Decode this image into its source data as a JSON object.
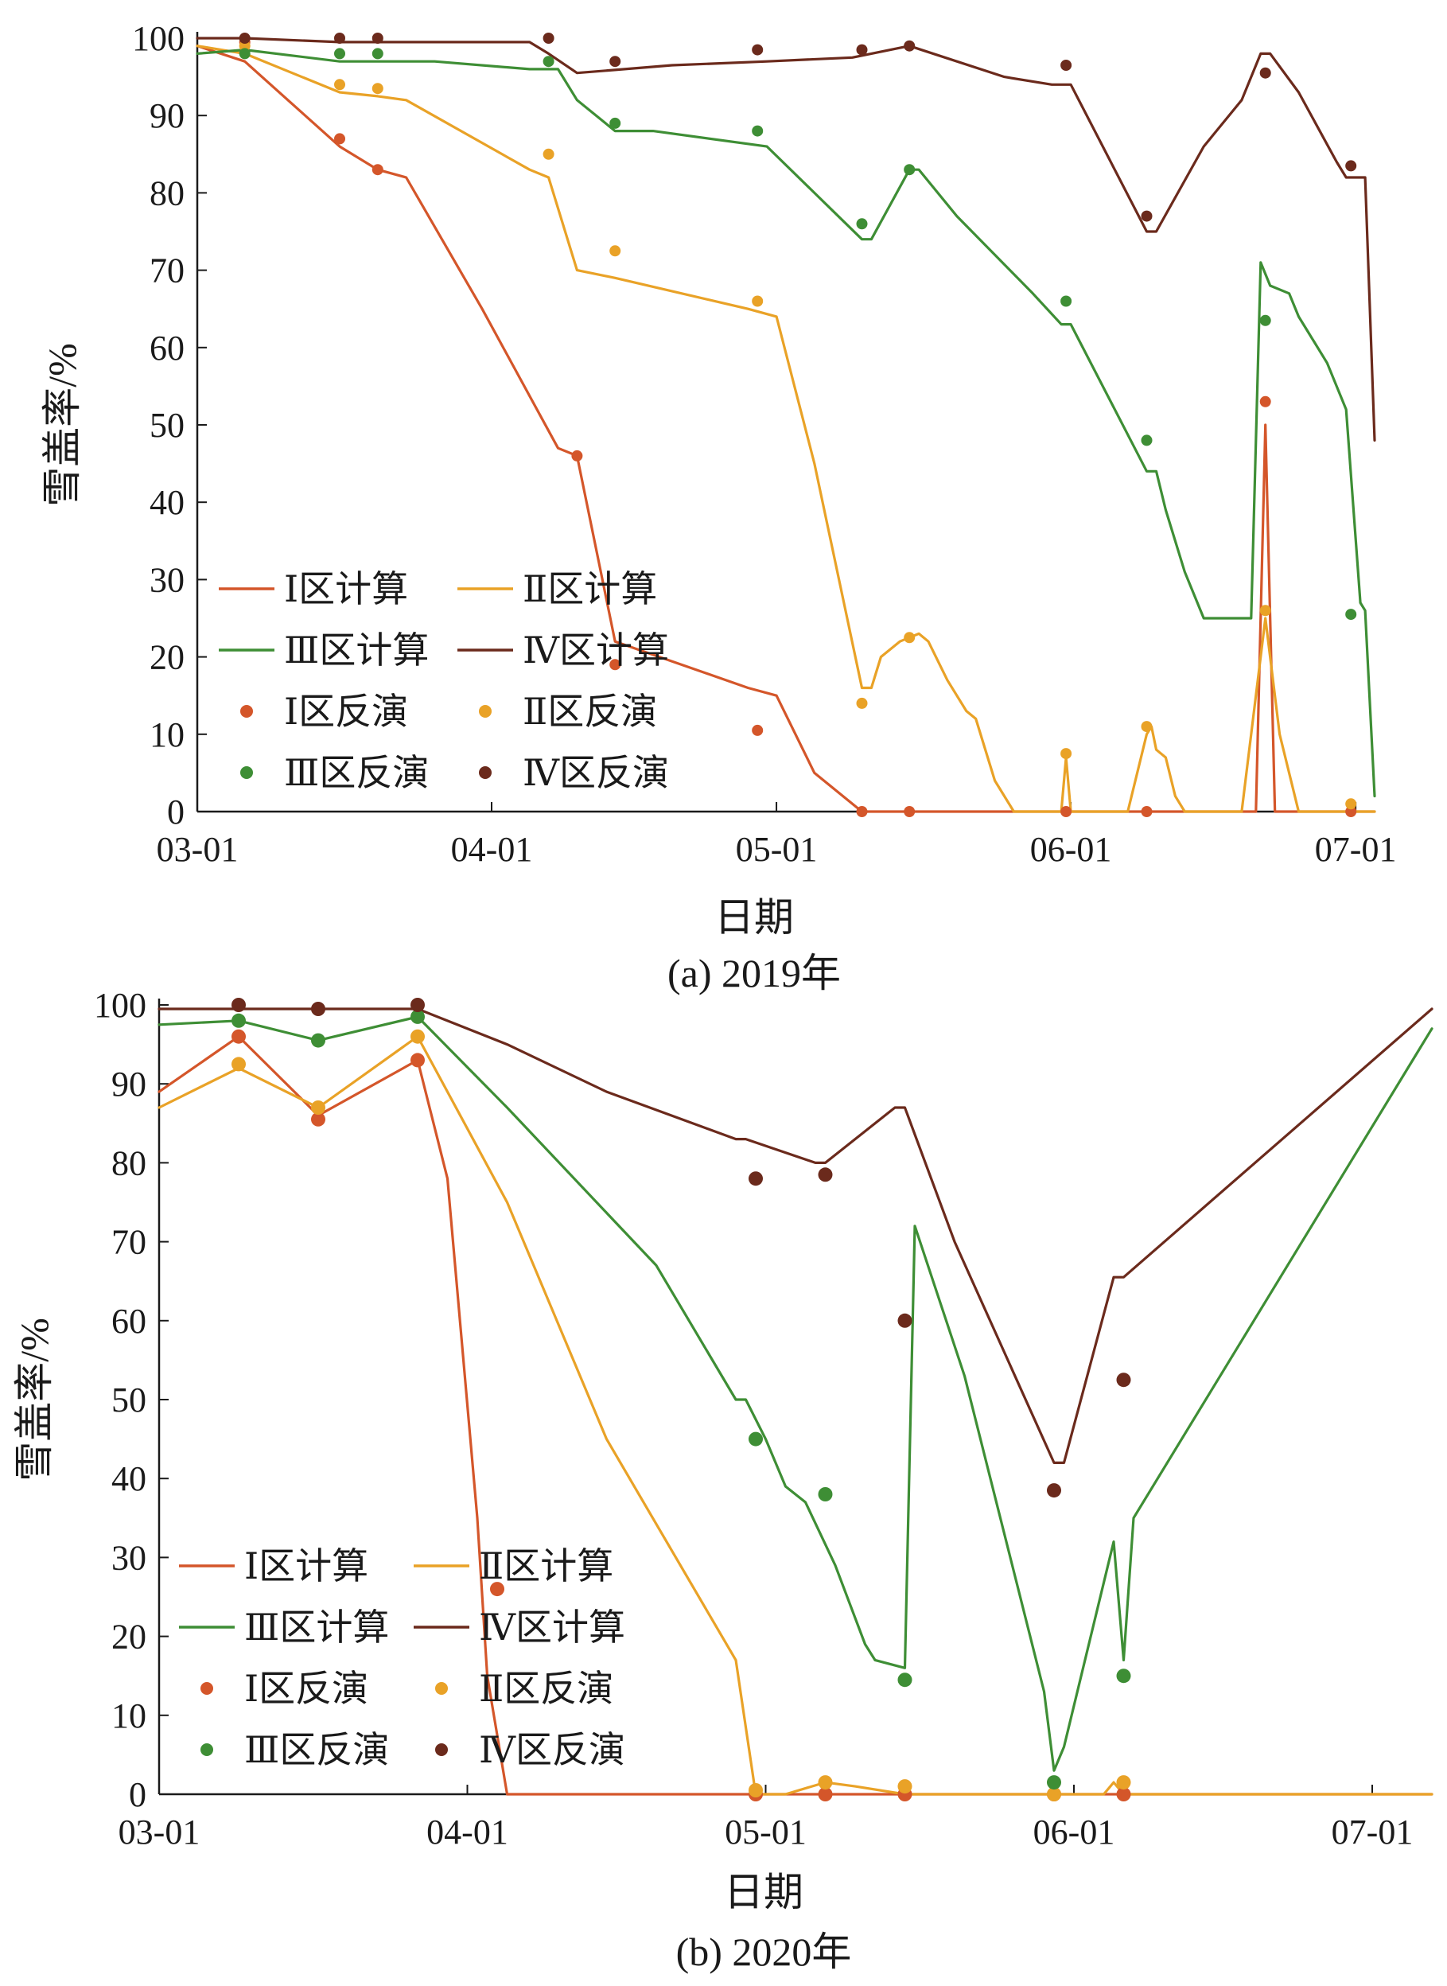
{
  "colors": {
    "zone1": "#d4562a",
    "zone2": "#e9a227",
    "zone3": "#3e8e35",
    "zone4": "#6b2a1c",
    "axis": "#1a1a1a"
  },
  "chart_data": [
    {
      "type": "line",
      "caption": "(a) 2019年",
      "xlabel": "日期",
      "ylabel": "雪盖率/%",
      "xlim": [
        0,
        124
      ],
      "ylim": [
        0,
        100
      ],
      "xticks": [
        {
          "label": "03-01",
          "day": 0
        },
        {
          "label": "04-01",
          "day": 31
        },
        {
          "label": "05-01",
          "day": 61
        },
        {
          "label": "06-01",
          "day": 92
        },
        {
          "label": "07-01",
          "day": 122
        }
      ],
      "yticks": [
        0,
        10,
        20,
        30,
        40,
        50,
        60,
        70,
        80,
        90,
        100
      ],
      "legend": [
        "Ⅰ区计算",
        "Ⅱ区计算",
        "Ⅲ区计算",
        "Ⅳ区计算",
        "Ⅰ区反演",
        "Ⅱ区反演",
        "Ⅲ区反演",
        "Ⅳ区反演"
      ],
      "series": [
        {
          "name": "Ⅰ区计算",
          "kind": "line",
          "color_key": "zone1",
          "x": [
            0,
            5,
            15,
            19,
            22,
            30,
            38,
            40,
            44,
            58,
            61,
            65,
            70,
            85,
            98,
            105,
            110,
            111.5,
            112.5,
            113.5,
            124
          ],
          "y": [
            99,
            97,
            86,
            83,
            82,
            65,
            47,
            46,
            22,
            16,
            15,
            5,
            0,
            0,
            0,
            0,
            0,
            0,
            50,
            0,
            0
          ]
        },
        {
          "name": "Ⅱ区计算",
          "kind": "line",
          "color_key": "zone2",
          "x": [
            0,
            5,
            15,
            19,
            22,
            35,
            37,
            40,
            44,
            58,
            61,
            65,
            70,
            71,
            72,
            74,
            76,
            77,
            79,
            81,
            82,
            84,
            86,
            90,
            91,
            91.5,
            92,
            96,
            98,
            100,
            100.5,
            101,
            102,
            103,
            104,
            110,
            112.5,
            114,
            116,
            124
          ],
          "y": [
            99,
            98,
            93,
            92.5,
            92,
            83,
            82,
            70,
            69,
            65,
            64,
            45,
            16,
            16,
            20,
            22,
            23,
            22,
            17,
            13,
            12,
            4,
            0,
            0,
            0,
            7,
            0,
            0,
            0,
            10,
            11,
            8,
            7,
            2,
            0,
            0,
            25,
            10,
            0,
            0
          ]
        },
        {
          "name": "Ⅲ区计算",
          "kind": "line",
          "color_key": "zone3",
          "x": [
            0,
            5,
            15,
            20,
            25,
            35,
            38,
            40,
            44,
            48,
            60,
            65,
            70,
            71,
            75,
            76,
            80,
            88,
            91,
            92,
            100,
            101,
            102,
            104,
            106,
            108,
            111,
            112,
            113,
            115,
            116,
            117,
            119,
            121,
            122.5,
            123,
            124
          ],
          "y": [
            98,
            98.5,
            97,
            97,
            97,
            96,
            96,
            92,
            88,
            88,
            86,
            80,
            74,
            74,
            83,
            83,
            77,
            67,
            63,
            63,
            44,
            44,
            39,
            31,
            25,
            25,
            25,
            71,
            68,
            67,
            64,
            62,
            58,
            52,
            27,
            26,
            2
          ]
        },
        {
          "name": "Ⅳ区计算",
          "kind": "line",
          "color_key": "zone4",
          "x": [
            0,
            5,
            15,
            20,
            35,
            37,
            40,
            45,
            50,
            60,
            69,
            75,
            85,
            90,
            92,
            100,
            101,
            106,
            110,
            112,
            113,
            116,
            120,
            121,
            123,
            124
          ],
          "y": [
            100,
            100,
            99.5,
            99.5,
            99.5,
            98,
            95.5,
            96,
            96.5,
            97,
            97.5,
            99,
            95,
            94,
            94,
            75,
            75,
            86,
            92,
            98,
            98,
            93,
            84,
            82,
            82,
            48
          ]
        },
        {
          "name": "Ⅰ区反演",
          "kind": "scatter",
          "color_key": "zone1",
          "x": [
            5,
            15,
            19,
            40,
            44,
            59,
            70,
            75,
            91.5,
            100,
            112.5,
            121.5
          ],
          "y": [
            99.5,
            87,
            83,
            46,
            19,
            10.5,
            0,
            0,
            0,
            0,
            53,
            0
          ]
        },
        {
          "name": "Ⅱ区反演",
          "kind": "scatter",
          "color_key": "zone2",
          "x": [
            5,
            15,
            19,
            37,
            44,
            59,
            70,
            75,
            91.5,
            100,
            112.5,
            121.5
          ],
          "y": [
            99,
            94,
            93.5,
            85,
            72.5,
            66,
            14,
            22.5,
            7.5,
            11,
            26,
            1
          ]
        },
        {
          "name": "Ⅲ区反演",
          "kind": "scatter",
          "color_key": "zone3",
          "x": [
            5,
            15,
            19,
            37,
            44,
            59,
            70,
            75,
            91.5,
            100,
            112.5,
            121.5
          ],
          "y": [
            98,
            98,
            98,
            97,
            89,
            88,
            76,
            83,
            66,
            48,
            63.5,
            25.5
          ]
        },
        {
          "name": "Ⅳ区反演",
          "kind": "scatter",
          "color_key": "zone4",
          "x": [
            5,
            15,
            19,
            37,
            44,
            59,
            70,
            75,
            91.5,
            100,
            112.5,
            121.5
          ],
          "y": [
            100,
            100,
            100,
            100,
            97,
            98.5,
            98.5,
            99,
            96.5,
            77,
            95.5,
            83.5
          ]
        }
      ]
    },
    {
      "type": "line",
      "caption": "(b) 2020年",
      "xlabel": "日期",
      "ylabel": "雪盖率/%",
      "xlim": [
        0,
        128
      ],
      "ylim": [
        0,
        100
      ],
      "xticks": [
        {
          "label": "03-01",
          "day": 0
        },
        {
          "label": "04-01",
          "day": 31
        },
        {
          "label": "05-01",
          "day": 61
        },
        {
          "label": "06-01",
          "day": 92
        },
        {
          "label": "07-01",
          "day": 122
        }
      ],
      "yticks": [
        0,
        10,
        20,
        30,
        40,
        50,
        60,
        70,
        80,
        90,
        100
      ],
      "legend": [
        "Ⅰ区计算",
        "Ⅱ区计算",
        "Ⅲ区计算",
        "Ⅳ区计算",
        "Ⅰ区反演",
        "Ⅱ区反演",
        "Ⅲ区反演",
        "Ⅳ区反演"
      ],
      "series": [
        {
          "name": "Ⅰ区计算",
          "kind": "line",
          "color_key": "zone1",
          "x": [
            0,
            8,
            16,
            26,
            29,
            32,
            33,
            35,
            36,
            70,
            128
          ],
          "y": [
            89,
            96,
            86,
            93,
            78,
            35,
            15,
            0,
            0,
            0,
            0
          ]
        },
        {
          "name": "Ⅱ区计算",
          "kind": "line",
          "color_key": "zone2",
          "x": [
            0,
            8,
            16,
            26,
            35,
            45,
            58,
            60,
            62,
            63,
            67,
            70,
            75,
            80,
            90,
            95,
            96,
            97,
            128
          ],
          "y": [
            87,
            92,
            87,
            96,
            75,
            45,
            17,
            0,
            0,
            0,
            1.5,
            1,
            0,
            0,
            0,
            0,
            1.5,
            0,
            0
          ]
        },
        {
          "name": "Ⅲ区计算",
          "kind": "line",
          "color_key": "zone3",
          "x": [
            0,
            8,
            16,
            26,
            35,
            50,
            58,
            59,
            61,
            63,
            65,
            68,
            71,
            72,
            75,
            76,
            81,
            89,
            90,
            91,
            96,
            97,
            98,
            128
          ],
          "y": [
            97.5,
            98,
            95.5,
            98.5,
            87,
            67,
            50,
            50,
            45,
            39,
            37,
            29,
            19,
            17,
            16,
            72,
            53,
            13,
            3,
            6,
            32,
            17,
            35,
            97
          ]
        },
        {
          "name": "Ⅳ区计算",
          "kind": "line",
          "color_key": "zone4",
          "x": [
            0,
            8,
            16,
            26,
            35,
            45,
            58,
            59,
            66,
            67,
            74,
            75,
            80,
            90,
            91,
            96,
            97,
            128
          ],
          "y": [
            99.5,
            99.5,
            99.5,
            99.5,
            95,
            89,
            83,
            83,
            80,
            80,
            87,
            87,
            70,
            42,
            42,
            65.5,
            65.5,
            99.5
          ]
        },
        {
          "name": "Ⅰ区反演",
          "kind": "scatter",
          "color_key": "zone1",
          "x": [
            8,
            16,
            26,
            34,
            60,
            67,
            75,
            90,
            97
          ],
          "y": [
            96,
            85.5,
            93,
            26,
            0,
            0,
            0,
            0,
            0
          ]
        },
        {
          "name": "Ⅱ区反演",
          "kind": "scatter",
          "color_key": "zone2",
          "x": [
            8,
            16,
            26,
            60,
            67,
            75,
            90,
            97
          ],
          "y": [
            92.5,
            87,
            96,
            0.5,
            1.5,
            1,
            0,
            1.5
          ]
        },
        {
          "name": "Ⅲ区反演",
          "kind": "scatter",
          "color_key": "zone3",
          "x": [
            8,
            16,
            26,
            60,
            67,
            75,
            90,
            97
          ],
          "y": [
            98,
            95.5,
            98.5,
            45,
            38,
            14.5,
            1.5,
            15
          ]
        },
        {
          "name": "Ⅳ区反演",
          "kind": "scatter",
          "color_key": "zone4",
          "x": [
            8,
            16,
            26,
            60,
            67,
            75,
            90,
            97
          ],
          "y": [
            100,
            99.5,
            100,
            78,
            78.5,
            60,
            38.5,
            52.5
          ]
        }
      ]
    }
  ]
}
